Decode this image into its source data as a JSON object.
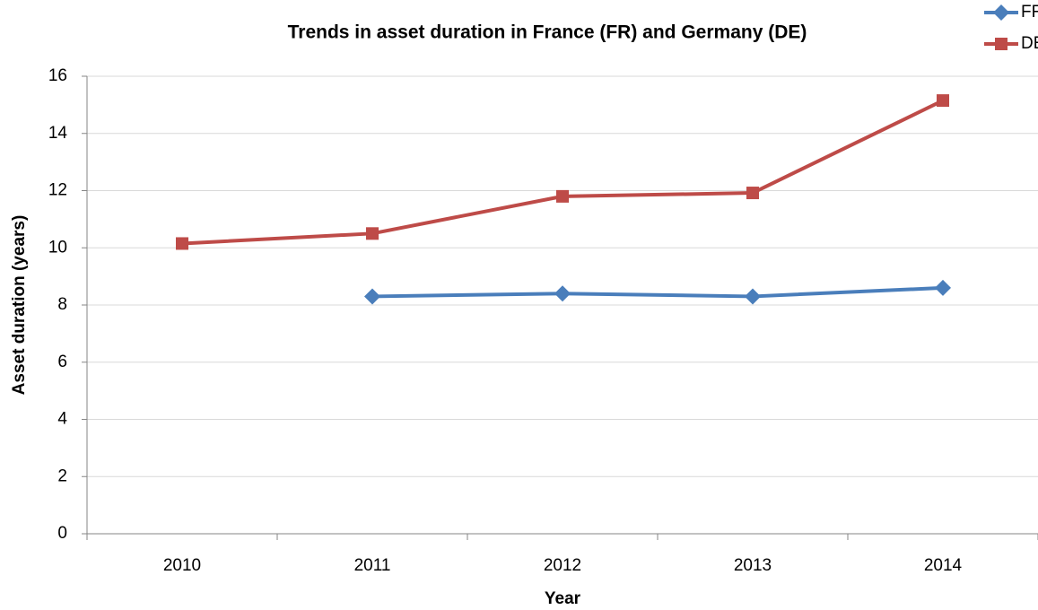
{
  "chart_data": {
    "type": "line",
    "title": "Trends in asset duration in France (FR) and Germany (DE)",
    "x_label": "Year",
    "y_label": "Asset duration (years)",
    "categories": [
      "2010",
      "2011",
      "2012",
      "2013",
      "2014"
    ],
    "series": [
      {
        "name": "FR",
        "color": "#4a7ebb",
        "marker": "diamond",
        "values": [
          null,
          8.3,
          8.4,
          8.3,
          8.6
        ]
      },
      {
        "name": "DE",
        "color": "#be4b48",
        "marker": "square",
        "values": [
          10.15,
          10.5,
          11.8,
          11.92,
          15.15
        ]
      }
    ],
    "ylim": [
      0,
      16
    ],
    "yticks": [
      0,
      2,
      4,
      6,
      8,
      10,
      12,
      14,
      16
    ],
    "grid": true,
    "legend": "top-right"
  }
}
